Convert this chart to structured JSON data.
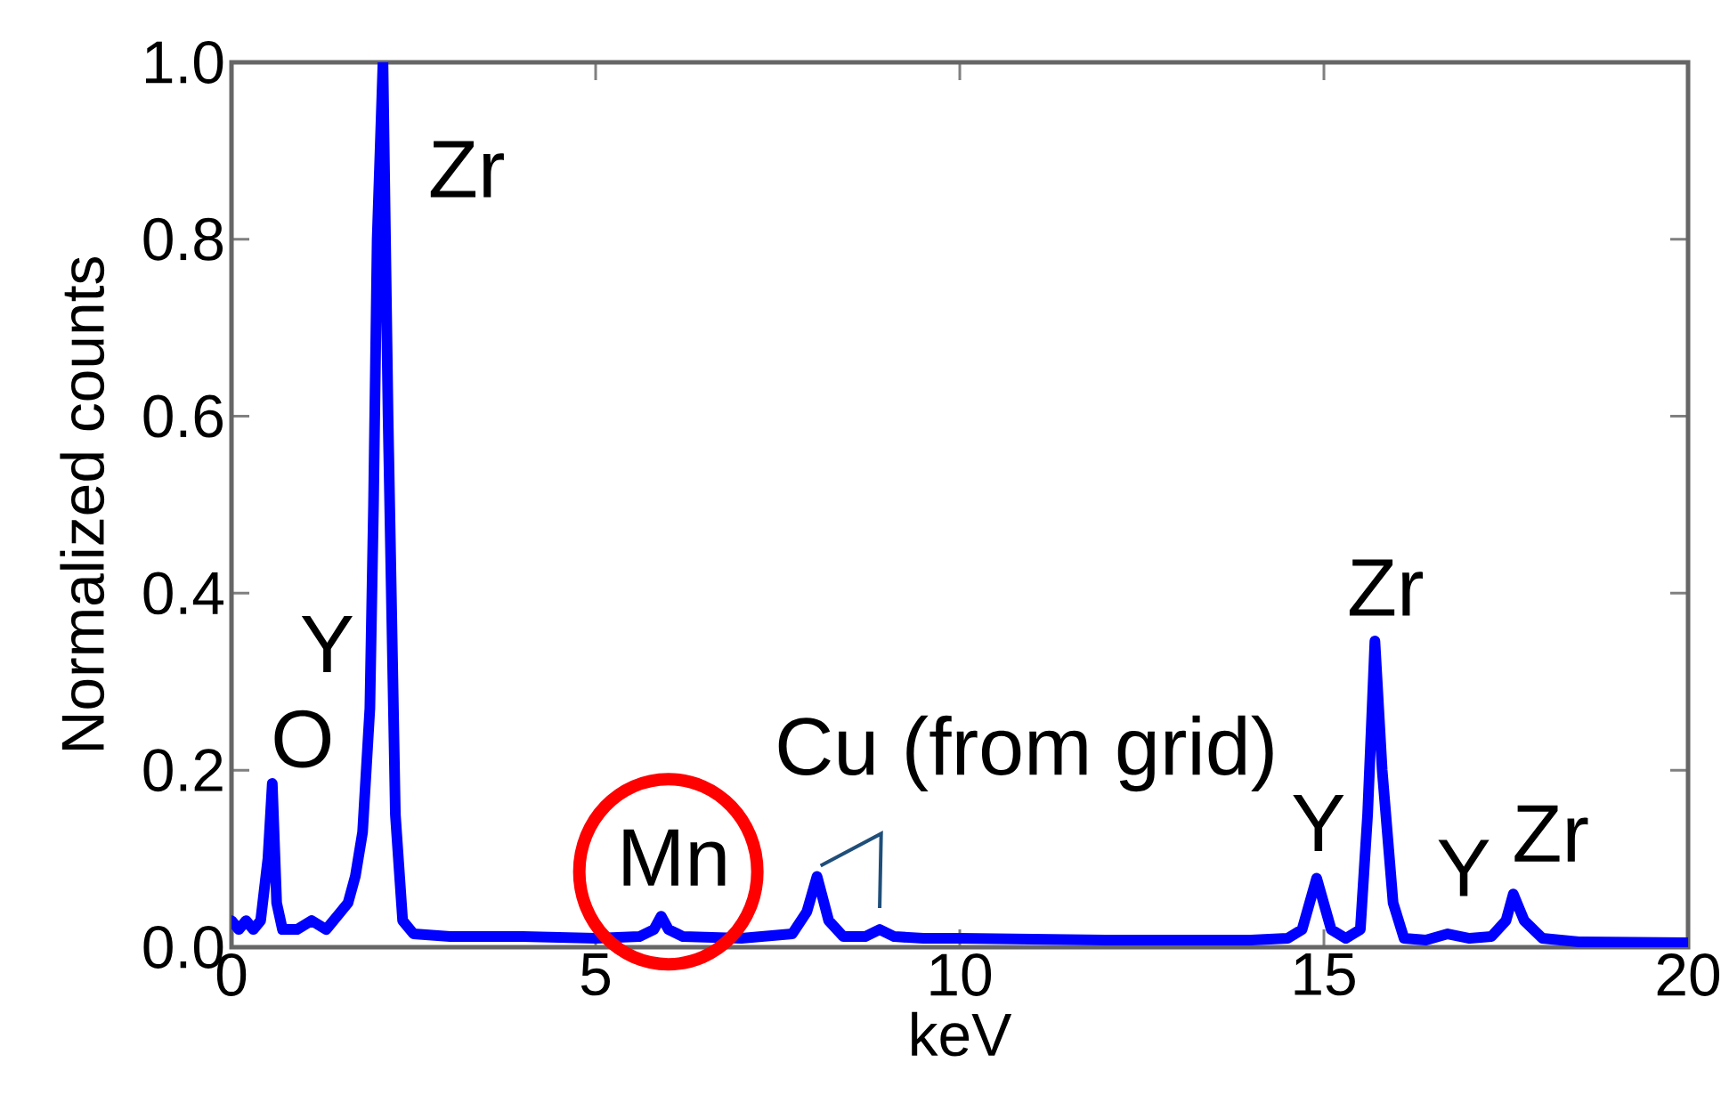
{
  "chart_data": {
    "type": "line",
    "xlabel": "keV",
    "ylabel": "Normalized counts",
    "xlim": [
      0,
      20
    ],
    "ylim": [
      0,
      1.0
    ],
    "xticks": [
      0,
      5,
      10,
      15,
      20
    ],
    "yticks": [
      {
        "value": 0,
        "label": "0.0"
      },
      {
        "value": 0.2,
        "label": "0.2"
      },
      {
        "value": 0.4,
        "label": "0.4"
      },
      {
        "value": 0.6,
        "label": "0.6"
      },
      {
        "value": 0.8,
        "label": "0.8"
      },
      {
        "value": 1.0,
        "label": "1.0"
      }
    ],
    "grid": false,
    "line_style": "solid",
    "series": [
      {
        "color": "#0000ff",
        "x": [
          0,
          0.1,
          0.2,
          0.3,
          0.4,
          0.5,
          0.56,
          0.62,
          0.7,
          0.9,
          1.1,
          1.3,
          1.5,
          1.6,
          1.7,
          1.8,
          1.9,
          1.95,
          2.0,
          2.08,
          2.15,
          2.25,
          2.35,
          2.5,
          3,
          4,
          5,
          5.6,
          5.8,
          5.9,
          6.0,
          6.2,
          7,
          7.7,
          7.9,
          8.04,
          8.2,
          8.4,
          8.7,
          8.9,
          9.1,
          9.5,
          10,
          12,
          14,
          14.5,
          14.7,
          14.9,
          15.1,
          15.3,
          15.5,
          15.6,
          15.7,
          15.8,
          15.95,
          16.1,
          16.4,
          16.7,
          17.0,
          17.3,
          17.5,
          17.6,
          17.75,
          18,
          18.5,
          20
        ],
        "values": [
          0.03,
          0.02,
          0.03,
          0.02,
          0.03,
          0.1,
          0.185,
          0.05,
          0.02,
          0.02,
          0.03,
          0.02,
          0.04,
          0.05,
          0.08,
          0.13,
          0.27,
          0.5,
          0.8,
          1.0,
          0.6,
          0.15,
          0.03,
          0.015,
          0.012,
          0.012,
          0.01,
          0.012,
          0.02,
          0.035,
          0.02,
          0.012,
          0.01,
          0.015,
          0.04,
          0.08,
          0.03,
          0.012,
          0.012,
          0.02,
          0.012,
          0.01,
          0.01,
          0.008,
          0.008,
          0.01,
          0.02,
          0.078,
          0.02,
          0.01,
          0.02,
          0.15,
          0.346,
          0.2,
          0.05,
          0.01,
          0.008,
          0.015,
          0.01,
          0.012,
          0.03,
          0.06,
          0.03,
          0.01,
          0.006,
          0.005
        ]
      }
    ],
    "annotations": [
      {
        "text": "Zr",
        "x": 2.08,
        "y": 1.0
      },
      {
        "text": "Y",
        "x": 1.9,
        "y": 0.27
      },
      {
        "text": "O",
        "x": 0.56,
        "y": 0.185
      },
      {
        "text": "Mn",
        "x": 5.9,
        "y": 0.035
      },
      {
        "text": "Cu (from grid)",
        "x": 8.04,
        "y": 0.08
      },
      {
        "text": "Y",
        "x": 14.9,
        "y": 0.078
      },
      {
        "text": "Zr",
        "x": 15.7,
        "y": 0.346
      },
      {
        "text": "Y",
        "x": 16.7,
        "y": 0.015
      },
      {
        "text": "Zr",
        "x": 17.6,
        "y": 0.06
      }
    ]
  }
}
